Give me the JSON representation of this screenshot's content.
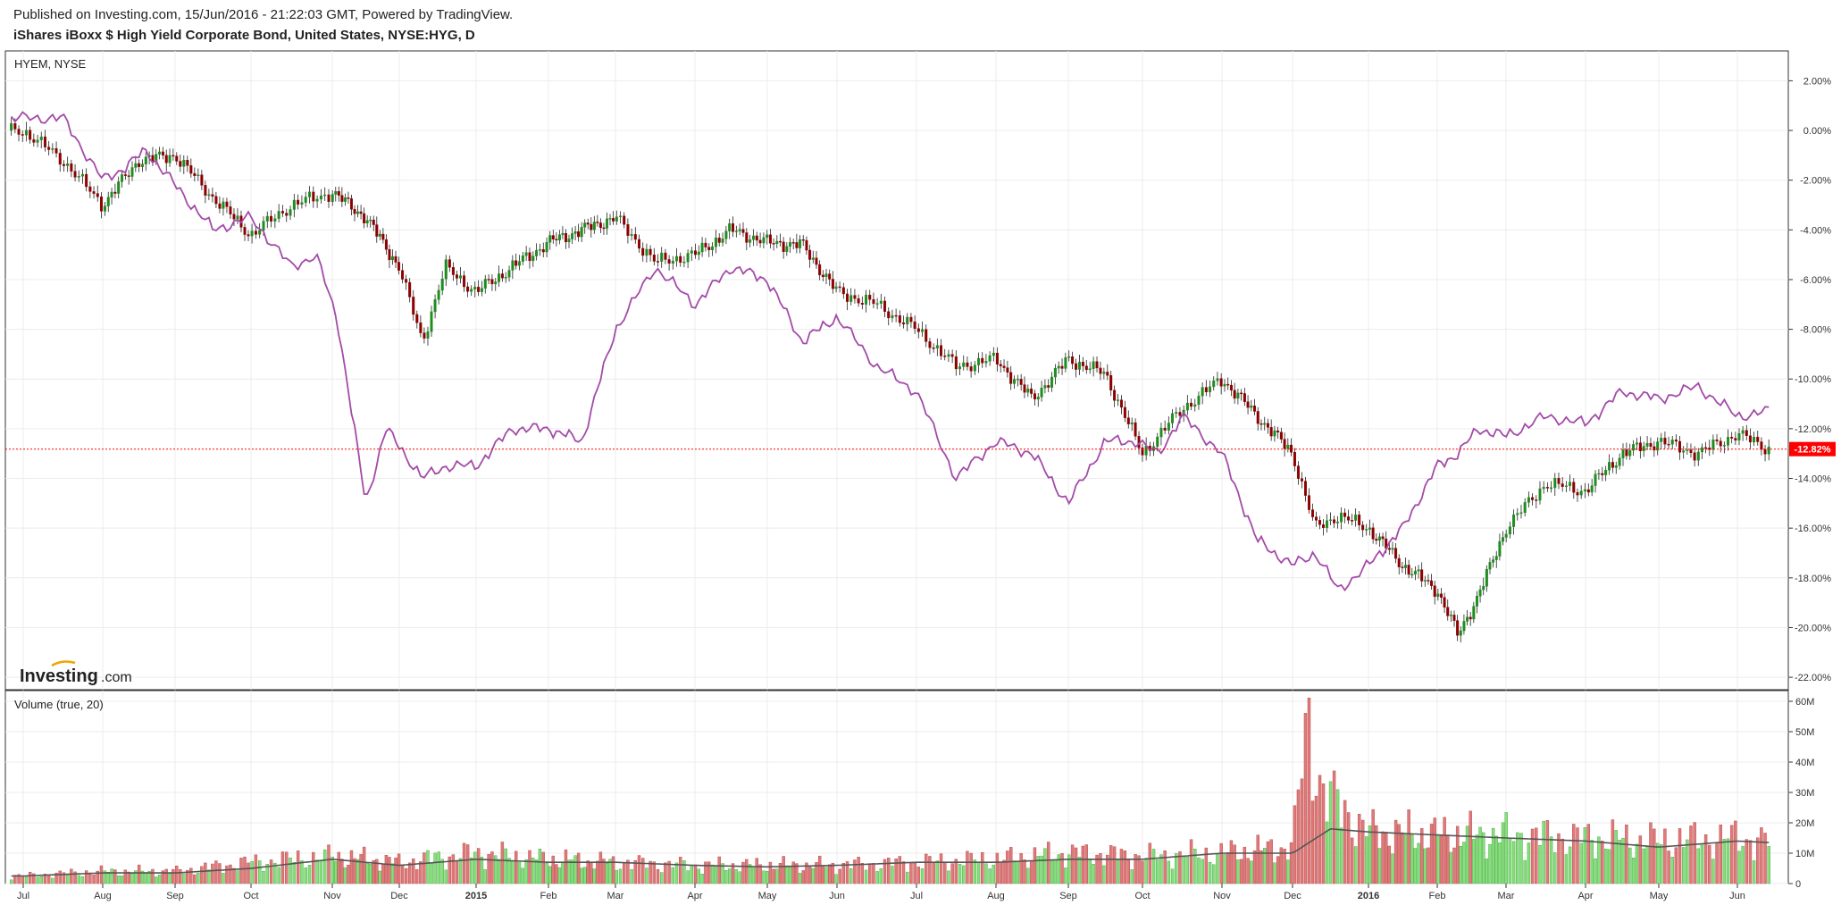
{
  "header": {
    "published": "Published on Investing.com, 15/Jun/2016 - 21:22:03 GMT, Powered by TradingView.",
    "instrument": "iShares iBoxx $ High Yield Corporate Bond, United States, NYSE:HYG, D"
  },
  "main_pane": {
    "compare_label": "HYEM, NYSE",
    "last_value_label": "-12.82%",
    "watermark": "Investing",
    "watermark_suffix": ".com"
  },
  "volume_pane": {
    "label": "Volume (true, 20)"
  },
  "colors": {
    "up": "#1e8c1e",
    "down": "#8b0000",
    "compare_line": "#a34ba8",
    "vol_up": "#86e07a",
    "vol_down": "#e07a7a",
    "vol_ma": "#555555",
    "last_badge": "#ff0000"
  },
  "chart_data": [
    {
      "type": "line",
      "title": "iShares iBoxx $ High Yield Corporate Bond, United States, NYSE:HYG, D",
      "y_unit": "%",
      "ylim": [
        -22.5,
        3.2
      ],
      "y_ticks": [
        2,
        0,
        -2,
        -4,
        -6,
        -8,
        -10,
        -12,
        -14,
        -16,
        -18,
        -20,
        -22
      ],
      "y_tick_labels": [
        "2.00%",
        "0.00%",
        "-2.00%",
        "-4.00%",
        "-6.00%",
        "-8.00%",
        "-10.00%",
        "-12.00%",
        "-14.00%",
        "-16.00%",
        "-18.00%",
        "-20.00%",
        "-22.00%"
      ],
      "x_tick_labels": [
        "Jul",
        "Aug",
        "Sep",
        "Oct",
        "Nov",
        "Dec",
        "2015",
        "Feb",
        "Mar",
        "Apr",
        "May",
        "Jun",
        "Jul",
        "Aug",
        "Sep",
        "Oct",
        "Nov",
        "Dec",
        "2016",
        "Feb",
        "Mar",
        "Apr",
        "May",
        "Jun"
      ],
      "x_tick_bold": [
        false,
        false,
        false,
        false,
        false,
        false,
        true,
        false,
        false,
        false,
        false,
        false,
        false,
        false,
        false,
        false,
        false,
        false,
        true,
        false,
        false,
        false,
        false,
        false
      ],
      "last_value": -12.82,
      "series": [
        {
          "name": "HYG",
          "style": "candlestick",
          "x_month_index": [
            0,
            0.5,
            1,
            1.5,
            2,
            2.5,
            3,
            3.5,
            4,
            4.5,
            5,
            5.3,
            5.6,
            6,
            6.5,
            7,
            7.5,
            8,
            8.5,
            9,
            9.5,
            10,
            10.5,
            11,
            11.5,
            12,
            12.5,
            13,
            13.5,
            14,
            14.5,
            15,
            15.5,
            16,
            16.5,
            17,
            17.3,
            17.6,
            18,
            18.5,
            19,
            19.3,
            19.6,
            20,
            20.5,
            21,
            21.5,
            22,
            22.5,
            23,
            23.4
          ],
          "values": [
            0,
            -1.2,
            -3,
            -1.2,
            -1,
            -2.7,
            -4.2,
            -3,
            -2.5,
            -3.5,
            -5.5,
            -8.5,
            -5.5,
            -6.5,
            -5.5,
            -4.5,
            -4,
            -3.5,
            -5.3,
            -5,
            -4,
            -4.5,
            -4.6,
            -6.5,
            -7,
            -8,
            -9.5,
            -9.2,
            -10.8,
            -9.2,
            -9.8,
            -13,
            -11.2,
            -10,
            -11.5,
            -13,
            -16,
            -15.5,
            -16,
            -17.5,
            -18.5,
            -20.3,
            -18.7,
            -16,
            -14.2,
            -14.5,
            -13,
            -12.5,
            -13,
            -12.2,
            -12.82
          ]
        },
        {
          "name": "HYEM",
          "style": "line",
          "x_month_index": [
            0,
            0.5,
            1,
            1.3,
            1.6,
            2,
            2.5,
            3,
            3.5,
            3.8,
            4.1,
            4.5,
            4.8,
            5,
            5.3,
            5.6,
            6,
            6.5,
            7,
            7.5,
            8,
            8.5,
            9,
            9.5,
            10,
            10.5,
            11,
            11.5,
            12,
            12.5,
            13,
            13.5,
            14,
            14.5,
            14.9,
            15.2,
            15.5,
            16,
            16.5,
            17,
            17.3,
            17.6,
            18,
            18.5,
            19,
            19.3,
            19.6,
            20,
            20.5,
            21,
            21.5,
            22,
            22.5,
            23,
            23.4
          ],
          "values": [
            0.5,
            0.5,
            -2,
            -1.5,
            -0.8,
            -2.2,
            -4,
            -3.5,
            -5.5,
            -5,
            -8,
            -15,
            -12,
            -12.7,
            -14,
            -13.5,
            -13.5,
            -12,
            -12,
            -12.5,
            -8,
            -5.5,
            -7,
            -5.5,
            -6,
            -8.5,
            -7.5,
            -9.5,
            -10.5,
            -14,
            -12.5,
            -13,
            -15,
            -12.5,
            -12.5,
            -13,
            -11.5,
            -13,
            -16.5,
            -17.5,
            -17,
            -18.5,
            -17.5,
            -16,
            -13.5,
            -13,
            -12,
            -12.3,
            -11.5,
            -11.8,
            -10.5,
            -10.8,
            -10.3,
            -11.5,
            -11.3
          ]
        }
      ]
    },
    {
      "type": "bar",
      "title": "Volume (true, 20)",
      "ylim": [
        0,
        60000000
      ],
      "y_ticks": [
        0,
        10000000,
        20000000,
        30000000,
        40000000,
        50000000,
        60000000
      ],
      "y_tick_labels": [
        "0",
        "10M",
        "20M",
        "30M",
        "40M",
        "50M",
        "60M"
      ],
      "series": [
        {
          "name": "Volume",
          "x_month_index": [
            0,
            1,
            2,
            3,
            4,
            5,
            6,
            7,
            8,
            9,
            10,
            11,
            12,
            13,
            14,
            15,
            16,
            17,
            17.2,
            17.4,
            18,
            19,
            20,
            21,
            22,
            23,
            23.4
          ],
          "values": [
            2500000,
            4000000,
            4000000,
            7000000,
            9000000,
            7000000,
            10000000,
            8000000,
            7000000,
            6000000,
            6000000,
            6000000,
            7000000,
            8000000,
            10000000,
            9000000,
            10000000,
            12000000,
            54000000,
            30000000,
            17000000,
            16000000,
            16000000,
            15000000,
            14000000,
            15000000,
            14000000
          ]
        },
        {
          "name": "Volume MA 20",
          "x_month_index": [
            0,
            1,
            2,
            3,
            4,
            5,
            6,
            7,
            8,
            9,
            10,
            11,
            12,
            13,
            14,
            15,
            16,
            17,
            17.5,
            18,
            19,
            20,
            21,
            22,
            23,
            23.4
          ],
          "values": [
            2500000,
            3500000,
            3500000,
            5000000,
            8000000,
            6000000,
            8000000,
            7000000,
            7000000,
            6000000,
            5500000,
            6000000,
            7000000,
            7000000,
            8000000,
            8000000,
            10000000,
            10000000,
            18000000,
            17000000,
            16000000,
            15000000,
            14000000,
            12000000,
            14000000,
            13500000
          ]
        }
      ]
    }
  ]
}
